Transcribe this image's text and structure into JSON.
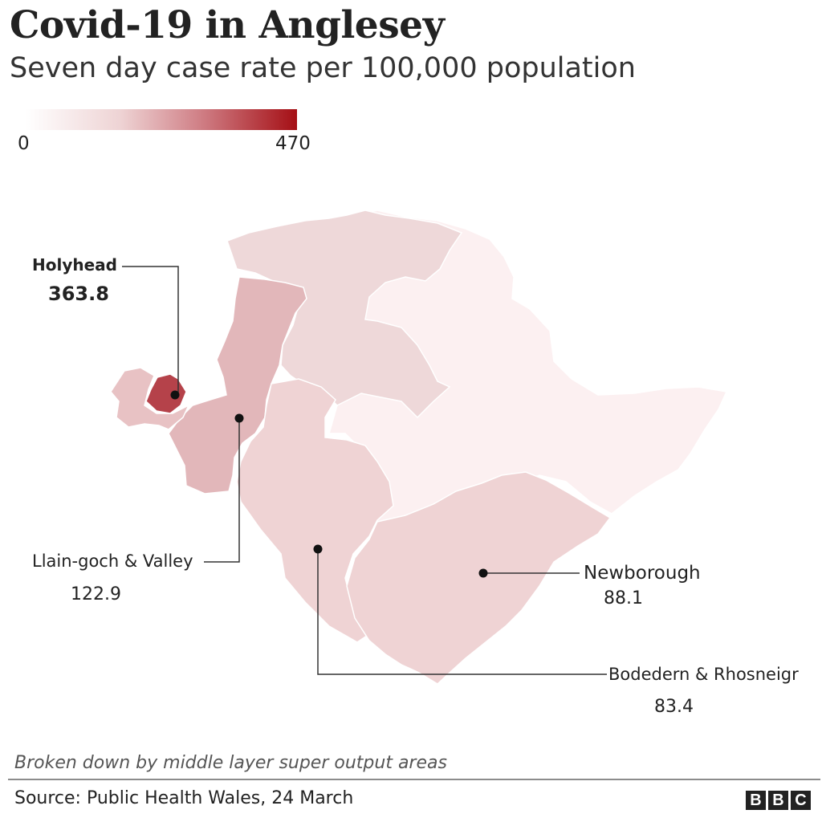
{
  "title": "Covid-19 in Anglesey",
  "subtitle": "Seven day case rate per 100,000 population",
  "legend": {
    "min": "0",
    "max": "470",
    "color_low": "#fbf1f1",
    "color_high": "#a50f15"
  },
  "areas": [
    {
      "name": "Holyhead",
      "value": "363.8",
      "color": "#b5424a"
    },
    {
      "name": "Llain-goch & Valley",
      "value": "122.9",
      "color": "#e2b7ba"
    },
    {
      "name": "Newborough",
      "value": "88.1",
      "color": "#efd3d4"
    },
    {
      "name": "Bodedern & Rhosneigr",
      "value": "83.4",
      "color": "#efd3d4"
    }
  ],
  "footnote": "Broken down by middle layer super output areas",
  "source": "Source: Public Health Wales,  24 March",
  "logo": [
    "B",
    "B",
    "C"
  ]
}
